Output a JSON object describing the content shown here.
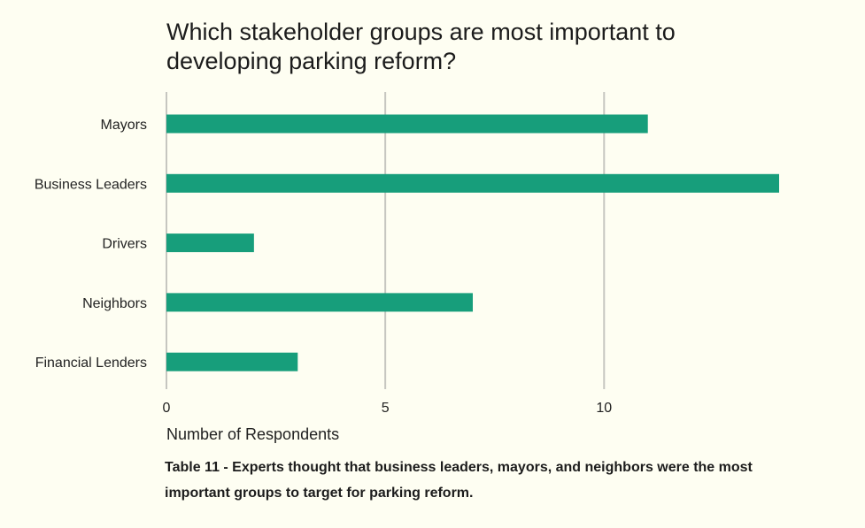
{
  "chart_data": {
    "type": "bar",
    "orientation": "horizontal",
    "title": "Which stakeholder groups are most important to developing parking reform?",
    "categories": [
      "Mayors",
      "Business Leaders",
      "Drivers",
      "Neighbors",
      "Financial Lenders"
    ],
    "values": [
      11,
      14,
      2,
      7,
      3
    ],
    "xlabel": "Number of Respondents",
    "ylabel": "",
    "xlim": [
      0,
      14
    ],
    "xticks": [
      0,
      5,
      10
    ],
    "grid": true,
    "bar_color": "#179e7b",
    "grid_color": "#c6c6c0"
  },
  "caption": "Table 11 - Experts thought that business leaders, mayors, and neighbors were the most important groups to target for parking reform."
}
